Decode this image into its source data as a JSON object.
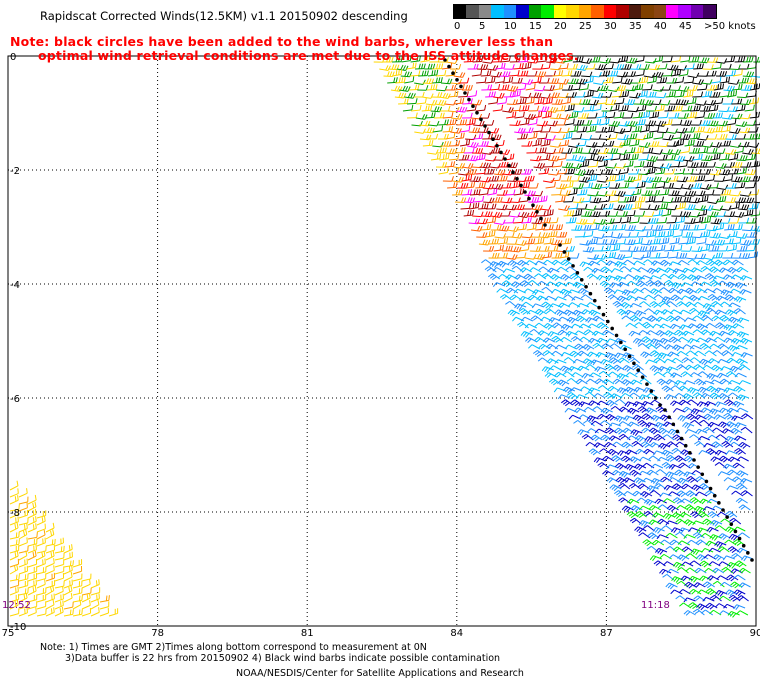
{
  "title": "Rapidscat Corrected Winds(12.5KM) v1.1 20150902 descending",
  "note_line1": "Note: black circles have been added to the wind barbs, wherever less than",
  "note_line2": "optimal wind retrieval conditions are met due to the ISS attitude changes.",
  "colorbar": {
    "colors": [
      "#000000",
      "#555555",
      "#8a8a8a",
      "#00bfff",
      "#1e90ff",
      "#0000cd",
      "#00a000",
      "#00ee00",
      "#ffff00",
      "#ffd700",
      "#ffa500",
      "#ff6000",
      "#ff0000",
      "#b00000",
      "#4d1a0d",
      "#804000",
      "#8b4513",
      "#ff00ff",
      "#b000ff",
      "#7000b0",
      "#400060"
    ],
    "labels": [
      "0",
      "5",
      "10",
      "15",
      "20",
      "25",
      "30",
      "35",
      "40",
      "45",
      ">50 knots"
    ]
  },
  "axes": {
    "x_ticks": [
      "75",
      "78",
      "81",
      "84",
      "87",
      "90"
    ],
    "y_ticks": [
      "0",
      "-2",
      "-4",
      "-6",
      "-8",
      "-10"
    ]
  },
  "times": {
    "left": "12:52",
    "right": "11:18"
  },
  "footer": {
    "line1": "Note: 1) Times are GMT 2)Times along bottom correspond to measurement at 0N",
    "line2": "3)Data buffer is 22 hrs from 20150902 4) Black wind barbs indicate possible contamination",
    "line3": "NOAA/NESDIS/Center for Satellite Applications and Research"
  }
}
